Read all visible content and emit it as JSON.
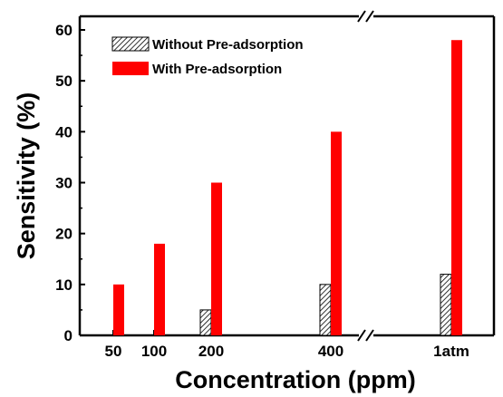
{
  "chart_data": {
    "type": "bar",
    "categories": [
      "50",
      "100",
      "200",
      "400",
      "1atm"
    ],
    "series": [
      {
        "name": "Without Pre-adsorption",
        "values": [
          0,
          0,
          5,
          10,
          12
        ],
        "color": "#ffffff",
        "pattern": "diagonal-hatch"
      },
      {
        "name": "With Pre-adsorption",
        "values": [
          10,
          18,
          30,
          40,
          58
        ],
        "color": "#ff0000"
      }
    ],
    "xlabel": "Concentration (ppm)",
    "ylabel": "Sensitivity (%)",
    "ylim": [
      0,
      63
    ],
    "yticks": [
      0,
      10,
      20,
      30,
      40,
      50,
      60
    ],
    "axis_break": "between 400 and 1atm",
    "legend_position": "top-left",
    "grid": false
  }
}
